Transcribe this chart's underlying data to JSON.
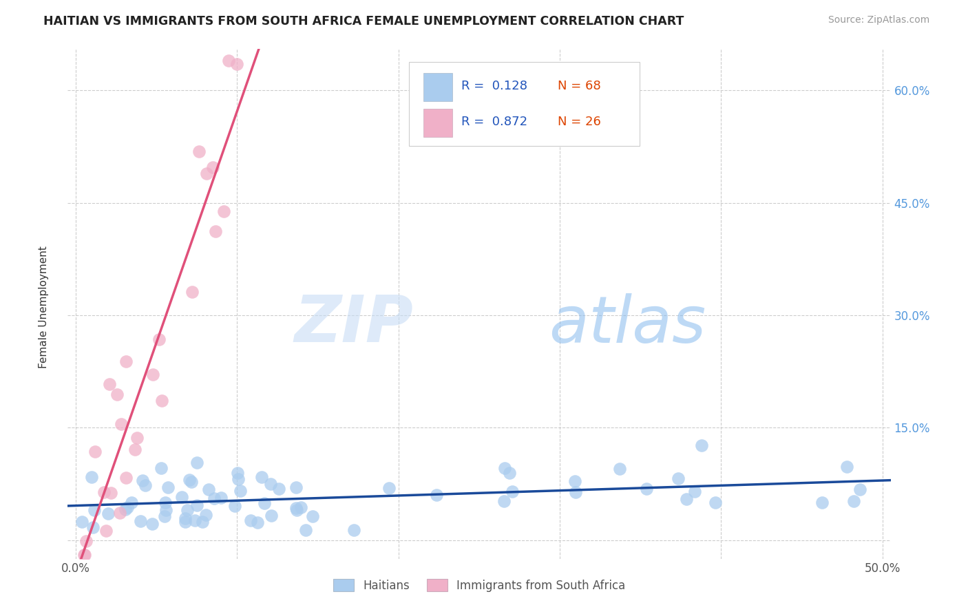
{
  "title": "HAITIAN VS IMMIGRANTS FROM SOUTH AFRICA FEMALE UNEMPLOYMENT CORRELATION CHART",
  "source": "Source: ZipAtlas.com",
  "ylabel": "Female Unemployment",
  "xlim": [
    -0.005,
    0.505
  ],
  "ylim": [
    -0.025,
    0.655
  ],
  "xtick_positions": [
    0.0,
    0.1,
    0.2,
    0.3,
    0.4,
    0.5
  ],
  "xticklabels": [
    "0.0%",
    "",
    "",
    "",
    "",
    "50.0%"
  ],
  "ytick_positions": [
    0.0,
    0.15,
    0.3,
    0.45,
    0.6
  ],
  "ytick_labels": [
    "",
    "15.0%",
    "30.0%",
    "45.0%",
    "60.0%"
  ],
  "r1": 0.128,
  "n1": 68,
  "r2": 0.872,
  "n2": 26,
  "label1": "Haitians",
  "label2": "Immigrants from South Africa",
  "color1": "#aaccee",
  "color2": "#f0b0c8",
  "line_color1": "#1a4a9a",
  "line_color2": "#e0507a",
  "background_color": "#ffffff",
  "grid_color": "#cccccc",
  "title_color": "#222222",
  "source_color": "#999999",
  "ytick_color": "#5599dd",
  "xtick_color": "#555555"
}
